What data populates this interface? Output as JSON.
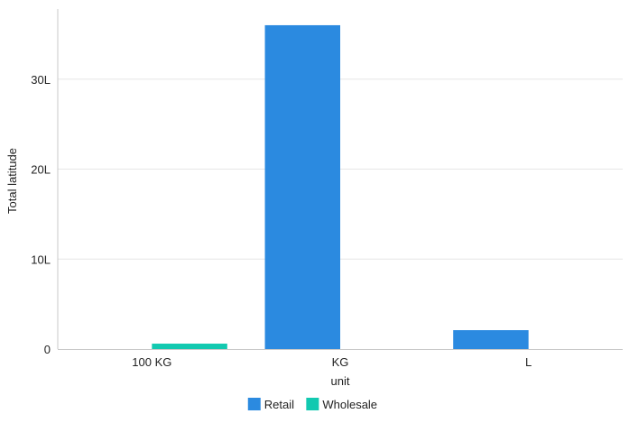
{
  "chart_data": {
    "type": "bar",
    "xlabel": "unit",
    "ylabel": "Total latitude",
    "categories": [
      "100 KG",
      "KG",
      "L"
    ],
    "series": [
      {
        "name": "Retail",
        "color": "#2b8ae0",
        "values": [
          0,
          36,
          2.1
        ]
      },
      {
        "name": "Wholesale",
        "color": "#12c9b0",
        "values": [
          0.6,
          0,
          0
        ]
      }
    ],
    "ylim": [
      0,
      37.8
    ],
    "yticks": [
      0,
      10,
      20,
      30
    ],
    "ytick_labels": [
      "0",
      "10L",
      "20L",
      "30L"
    ],
    "grid": true,
    "legend_position": "bottom-center"
  }
}
